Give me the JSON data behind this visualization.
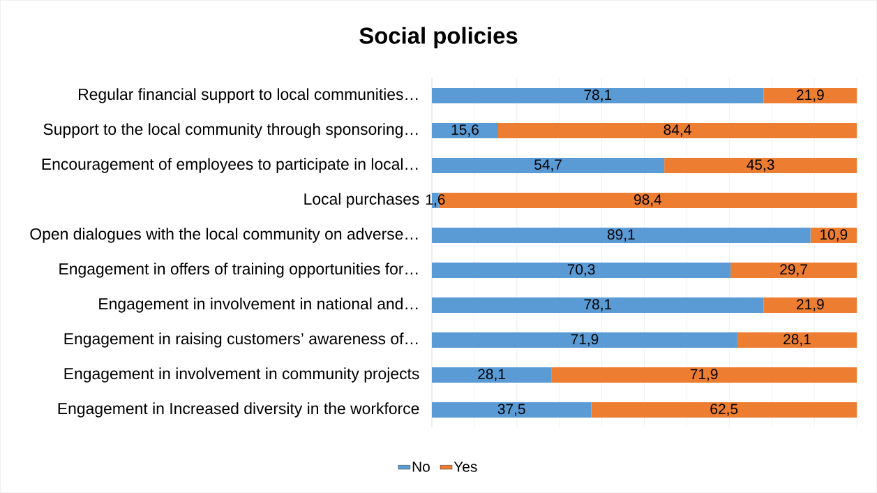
{
  "chart_data": {
    "type": "bar",
    "orientation": "horizontal",
    "stacked": true,
    "title": "Social policies",
    "categories": [
      "Regular financial support to local communities…",
      "Support to the local community through sponsoring…",
      "Encouragement of employees to participate in local…",
      "Local purchases",
      "Open dialogues with the local community on adverse…",
      "Engagement in offers of training opportunities for…",
      "Engagement in involvement in national and…",
      "Engagement in raising customers’ awareness of…",
      "Engagement in involvement in community projects",
      "Engagement in Increased diversity in the workforce"
    ],
    "series": [
      {
        "name": "No",
        "color": "#5b9bd5",
        "values": [
          78.1,
          15.6,
          54.7,
          1.6,
          89.1,
          70.3,
          78.1,
          71.9,
          28.1,
          37.5
        ],
        "value_labels": [
          "78,1",
          "15,6",
          "54,7",
          "1,6",
          "89,1",
          "70,3",
          "78,1",
          "71,9",
          "28,1",
          "37,5"
        ]
      },
      {
        "name": "Yes",
        "color": "#ed7d31",
        "values": [
          21.9,
          84.4,
          45.3,
          98.4,
          10.9,
          29.7,
          21.9,
          28.1,
          71.9,
          62.5
        ],
        "value_labels": [
          "21,9",
          "84,4",
          "45,3",
          "98,4",
          "10,9",
          "29,7",
          "21,9",
          "28,1",
          "71,9",
          "62,5"
        ]
      }
    ],
    "xlim": [
      0,
      100
    ],
    "xticks": [
      {
        "value": 0,
        "label": null
      },
      {
        "value": 10,
        "label": null
      },
      {
        "value": 20,
        "label": null
      },
      {
        "value": 30,
        "label": null
      },
      {
        "value": 40,
        "label": null
      },
      {
        "value": 50,
        "label": null
      },
      {
        "value": 60,
        "label": null
      },
      {
        "value": 70,
        "label": null
      },
      {
        "value": 80,
        "label": null
      },
      {
        "value": 90,
        "label": null
      },
      {
        "value": 100,
        "label": null
      }
    ],
    "tick_labels": "y",
    "grid": "x",
    "legend": "bottom"
  }
}
